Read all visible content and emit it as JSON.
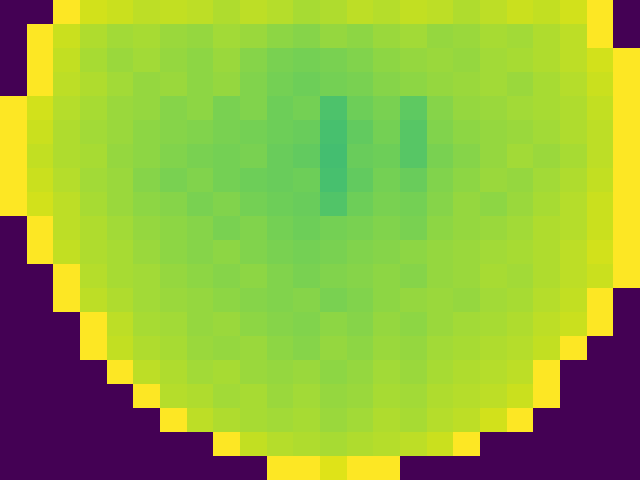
{
  "chart_data": {
    "type": "heatmap",
    "tick_labels": false,
    "color_range": [
      0,
      1
    ],
    "cells": [
      [
        0,
        0,
        1,
        0.93,
        0.92,
        0.9,
        0.91,
        0.9,
        0.88,
        0.9,
        0.89,
        0.87,
        0.88,
        0.9,
        0.89,
        0.91,
        0.9,
        0.88,
        0.9,
        0.92,
        0.91,
        0.93,
        1,
        0
      ],
      [
        0,
        1,
        0.92,
        0.88,
        0.86,
        0.87,
        0.85,
        0.84,
        0.86,
        0.85,
        0.83,
        0.82,
        0.84,
        0.83,
        0.85,
        0.86,
        0.84,
        0.85,
        0.87,
        0.86,
        0.88,
        0.9,
        1,
        0
      ],
      [
        0,
        1,
        0.91,
        0.87,
        0.85,
        0.86,
        0.84,
        0.83,
        0.85,
        0.82,
        0.8,
        0.79,
        0.8,
        0.81,
        0.83,
        0.84,
        0.85,
        0.84,
        0.86,
        0.87,
        0.88,
        0.9,
        0.93,
        1
      ],
      [
        0,
        1,
        0.9,
        0.88,
        0.86,
        0.84,
        0.85,
        0.83,
        0.84,
        0.81,
        0.79,
        0.78,
        0.79,
        0.8,
        0.82,
        0.83,
        0.84,
        0.85,
        0.86,
        0.85,
        0.87,
        0.89,
        0.92,
        1
      ],
      [
        1,
        0.93,
        0.89,
        0.87,
        0.85,
        0.84,
        0.82,
        0.83,
        0.8,
        0.81,
        0.78,
        0.79,
        0.72,
        0.78,
        0.8,
        0.75,
        0.82,
        0.84,
        0.85,
        0.86,
        0.87,
        0.88,
        0.91,
        1
      ],
      [
        1,
        0.92,
        0.88,
        0.86,
        0.85,
        0.83,
        0.82,
        0.81,
        0.8,
        0.79,
        0.78,
        0.77,
        0.71,
        0.76,
        0.79,
        0.74,
        0.81,
        0.83,
        0.84,
        0.85,
        0.86,
        0.88,
        0.9,
        1
      ],
      [
        1,
        0.91,
        0.88,
        0.87,
        0.84,
        0.83,
        0.81,
        0.8,
        0.79,
        0.8,
        0.77,
        0.76,
        0.7,
        0.77,
        0.78,
        0.74,
        0.8,
        0.82,
        0.84,
        0.86,
        0.85,
        0.87,
        0.9,
        1
      ],
      [
        1,
        0.92,
        0.89,
        0.86,
        0.85,
        0.82,
        0.8,
        0.81,
        0.79,
        0.78,
        0.77,
        0.78,
        0.71,
        0.76,
        0.79,
        0.77,
        0.81,
        0.83,
        0.85,
        0.84,
        0.86,
        0.88,
        0.91,
        1
      ],
      [
        1,
        0.93,
        0.9,
        0.87,
        0.85,
        0.83,
        0.82,
        0.8,
        0.81,
        0.79,
        0.78,
        0.77,
        0.73,
        0.78,
        0.8,
        0.79,
        0.82,
        0.84,
        0.83,
        0.85,
        0.87,
        0.89,
        0.92,
        1
      ],
      [
        0,
        1,
        0.9,
        0.88,
        0.86,
        0.84,
        0.83,
        0.82,
        0.8,
        0.81,
        0.79,
        0.78,
        0.79,
        0.8,
        0.81,
        0.8,
        0.83,
        0.84,
        0.85,
        0.86,
        0.88,
        0.89,
        0.92,
        1
      ],
      [
        0,
        1,
        0.91,
        0.88,
        0.87,
        0.85,
        0.83,
        0.82,
        0.83,
        0.81,
        0.8,
        0.79,
        0.8,
        0.81,
        0.82,
        0.83,
        0.84,
        0.85,
        0.86,
        0.87,
        0.88,
        0.9,
        0.93,
        1
      ],
      [
        0,
        0,
        1,
        0.89,
        0.87,
        0.86,
        0.84,
        0.83,
        0.82,
        0.83,
        0.81,
        0.8,
        0.81,
        0.82,
        0.83,
        0.82,
        0.84,
        0.85,
        0.87,
        0.86,
        0.88,
        0.9,
        0.92,
        1
      ],
      [
        0,
        0,
        1,
        0.9,
        0.88,
        0.86,
        0.85,
        0.84,
        0.83,
        0.82,
        0.81,
        0.82,
        0.8,
        0.81,
        0.83,
        0.84,
        0.85,
        0.84,
        0.86,
        0.87,
        0.89,
        0.91,
        1,
        0
      ],
      [
        0,
        0,
        0,
        1,
        0.9,
        0.87,
        0.86,
        0.84,
        0.85,
        0.83,
        0.82,
        0.81,
        0.83,
        0.82,
        0.84,
        0.83,
        0.85,
        0.86,
        0.87,
        0.88,
        0.9,
        0.92,
        1,
        0
      ],
      [
        0,
        0,
        0,
        1,
        0.91,
        0.88,
        0.87,
        0.85,
        0.84,
        0.85,
        0.83,
        0.82,
        0.84,
        0.83,
        0.85,
        0.84,
        0.86,
        0.87,
        0.88,
        0.89,
        0.91,
        1,
        0,
        0
      ],
      [
        0,
        0,
        0,
        0,
        1,
        0.9,
        0.88,
        0.86,
        0.87,
        0.85,
        0.84,
        0.85,
        0.83,
        0.84,
        0.86,
        0.85,
        0.87,
        0.88,
        0.89,
        0.9,
        1,
        0,
        0,
        0
      ],
      [
        0,
        0,
        0,
        0,
        0,
        1,
        0.89,
        0.88,
        0.86,
        0.87,
        0.85,
        0.86,
        0.84,
        0.85,
        0.87,
        0.86,
        0.88,
        0.89,
        0.9,
        0.92,
        1,
        0,
        0,
        0
      ],
      [
        0,
        0,
        0,
        0,
        0,
        0,
        1,
        0.9,
        0.88,
        0.87,
        0.86,
        0.87,
        0.85,
        0.86,
        0.88,
        0.87,
        0.89,
        0.9,
        0.93,
        1,
        0,
        0,
        0,
        0
      ],
      [
        0,
        0,
        0,
        0,
        0,
        0,
        0,
        0,
        1,
        0.91,
        0.89,
        0.88,
        0.87,
        0.88,
        0.89,
        0.9,
        0.92,
        1,
        0,
        0,
        0,
        0,
        0,
        0
      ],
      [
        0,
        0,
        0,
        0,
        0,
        0,
        0,
        0,
        0,
        0,
        1,
        1,
        0.95,
        1,
        1,
        0,
        0,
        0,
        0,
        0,
        0,
        0,
        0,
        0
      ]
    ]
  }
}
